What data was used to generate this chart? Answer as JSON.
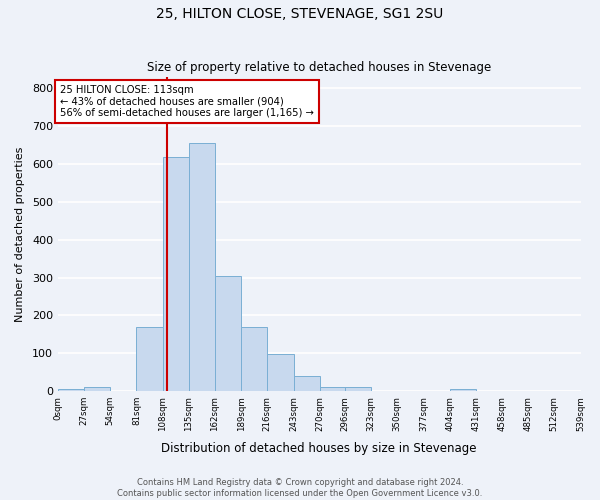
{
  "title": "25, HILTON CLOSE, STEVENAGE, SG1 2SU",
  "subtitle": "Size of property relative to detached houses in Stevenage",
  "xlabel": "Distribution of detached houses by size in Stevenage",
  "ylabel": "Number of detached properties",
  "bin_edges": [
    0,
    27,
    54,
    81,
    108,
    135,
    162,
    189,
    216,
    243,
    270,
    296,
    323,
    350,
    377,
    404,
    431,
    458,
    485,
    512,
    539
  ],
  "bin_labels": [
    "0sqm",
    "27sqm",
    "54sqm",
    "81sqm",
    "108sqm",
    "135sqm",
    "162sqm",
    "189sqm",
    "216sqm",
    "243sqm",
    "270sqm",
    "296sqm",
    "323sqm",
    "350sqm",
    "377sqm",
    "404sqm",
    "431sqm",
    "458sqm",
    "485sqm",
    "512sqm",
    "539sqm"
  ],
  "bar_heights": [
    5,
    12,
    0,
    170,
    620,
    655,
    305,
    170,
    97,
    40,
    12,
    10,
    0,
    0,
    0,
    5,
    0,
    0,
    0,
    0
  ],
  "bar_color": "#c8d9ee",
  "bar_edge_color": "#7aafd4",
  "property_value": 113,
  "vline_color": "#cc0000",
  "annotation_text": "25 HILTON CLOSE: 113sqm\n← 43% of detached houses are smaller (904)\n56% of semi-detached houses are larger (1,165) →",
  "annotation_box_color": "#ffffff",
  "annotation_box_edge_color": "#cc0000",
  "ylim": [
    0,
    830
  ],
  "yticks": [
    0,
    100,
    200,
    300,
    400,
    500,
    600,
    700,
    800
  ],
  "background_color": "#eef2f9",
  "grid_color": "#ffffff",
  "footer_line1": "Contains HM Land Registry data © Crown copyright and database right 2024.",
  "footer_line2": "Contains public sector information licensed under the Open Government Licence v3.0."
}
